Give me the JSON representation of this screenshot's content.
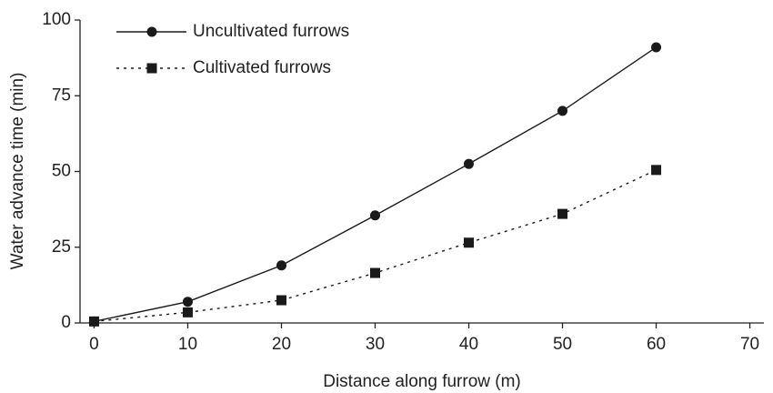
{
  "chart_data": {
    "type": "line",
    "x_label": "Distance along furrow (m)",
    "y_label": "Water advance time (min)",
    "x": [
      0,
      10,
      20,
      30,
      40,
      50,
      60
    ],
    "series": [
      {
        "name": "Uncultivated furrows",
        "color": "#1a1a1a",
        "line_style": "solid",
        "marker": "circle",
        "values": [
          0.5,
          7,
          19,
          35.5,
          52.5,
          70,
          91
        ]
      },
      {
        "name": "Cultivated furrows",
        "color": "#1a1a1a",
        "line_style": "dotted",
        "marker": "square",
        "values": [
          0.5,
          3.5,
          7.5,
          16.5,
          26.5,
          36,
          50.5
        ]
      }
    ],
    "xlim": [
      -1.5,
      71.5
    ],
    "xticks": [
      0,
      10,
      20,
      30,
      40,
      50,
      60,
      70
    ],
    "ylim": [
      0,
      100
    ],
    "yticks": [
      0,
      25,
      50,
      75,
      100
    ],
    "grid": false,
    "legend": "top-left"
  }
}
